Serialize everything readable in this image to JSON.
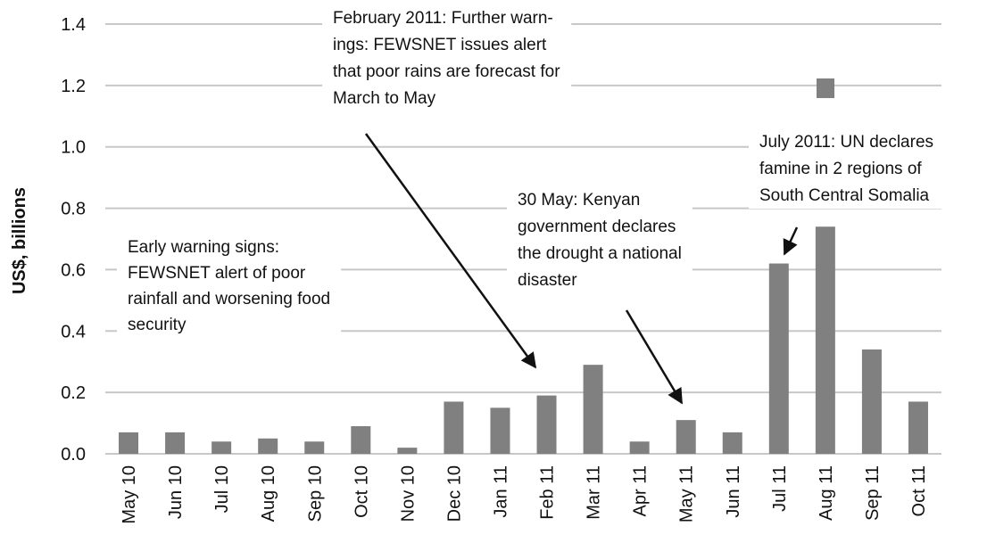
{
  "chart_data": {
    "type": "bar",
    "y_label": "US$, billions",
    "categories": [
      "May 10",
      "Jun 10",
      "Jul 10",
      "Aug 10",
      "Sep 10",
      "Oct 10",
      "Nov 10",
      "Dec 10",
      "Jan 11",
      "Feb 11",
      "Mar 11",
      "Apr 11",
      "May 11",
      "Jun 11",
      "Jul 11",
      "Aug 11",
      "Sep 11",
      "Oct 11"
    ],
    "values": [
      0.07,
      0.07,
      0.04,
      0.05,
      0.04,
      0.09,
      0.02,
      0.17,
      0.15,
      0.19,
      0.29,
      0.04,
      0.11,
      0.07,
      0.62,
      0.74,
      0.34,
      0.17
    ],
    "color": "#808080",
    "ylim": [
      0,
      1.4
    ],
    "yticks": [
      {
        "value": 0,
        "label": "0.0"
      },
      {
        "value": 0.2,
        "label": "0.2"
      },
      {
        "value": 0.4,
        "label": "0.4"
      },
      {
        "value": 0.6,
        "label": "0.6"
      },
      {
        "value": 0.8,
        "label": "0.8"
      },
      {
        "value": 1,
        "label": "1.0"
      },
      {
        "value": 1.2,
        "label": "1.2"
      },
      {
        "value": 1.4,
        "label": "1.4"
      }
    ],
    "grid": true,
    "annotations": [
      [
        "Early warning signs:",
        "FEWSNET alert of poor",
        "rainfall and worsening food",
        "security"
      ],
      [
        "February 2011: Further warn-",
        "ings: FEWSNET issues alert",
        "that poor rains are forecast for",
        "March to May"
      ],
      [
        "30 May: Kenyan",
        "government declares",
        "the drought a national",
        "disaster"
      ],
      [
        "July 2011: UN declares",
        "famine in 2 regions of",
        "South Central Somalia"
      ]
    ]
  }
}
